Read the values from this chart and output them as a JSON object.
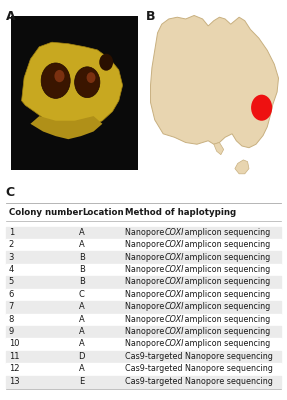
{
  "panel_A_label": "A",
  "panel_B_label": "B",
  "panel_C_label": "C",
  "table_headers": [
    "Colony number",
    "Location",
    "Method of haplotyping"
  ],
  "table_rows": [
    [
      "1",
      "A",
      "Nanopore COXI amplicon sequencing"
    ],
    [
      "2",
      "A",
      "Nanopore COXI amplicon sequencing"
    ],
    [
      "3",
      "B",
      "Nanopore COXI amplicon sequencing"
    ],
    [
      "4",
      "B",
      "Nanopore COXI amplicon sequencing"
    ],
    [
      "5",
      "B",
      "Nanopore COXI amplicon sequencing"
    ],
    [
      "6",
      "C",
      "Nanopore COXI amplicon sequencing"
    ],
    [
      "7",
      "A",
      "Nanopore COXI amplicon sequencing"
    ],
    [
      "8",
      "A",
      "Nanopore COXI amplicon sequencing"
    ],
    [
      "9",
      "A",
      "Nanopore COXI amplicon sequencing"
    ],
    [
      "10",
      "A",
      "Nanopore COXI amplicon sequencing"
    ],
    [
      "11",
      "D",
      "Cas9-targeted Nanopore sequencing"
    ],
    [
      "12",
      "A",
      "Cas9-targeted Nanopore sequencing"
    ],
    [
      "13",
      "E",
      "Cas9-targeted Nanopore sequencing"
    ]
  ],
  "row_colors_even": "#ebebeb",
  "row_colors_odd": "#ffffff",
  "bg_color": "#ffffff",
  "text_color": "#1a1a1a",
  "australia_fill_color": "#e8d5b0",
  "australia_outline_color": "#c8b080",
  "red_dot_color": "#ee1111",
  "image_border_color": "#7799bb",
  "image_bg_color": "#0a0a0a"
}
